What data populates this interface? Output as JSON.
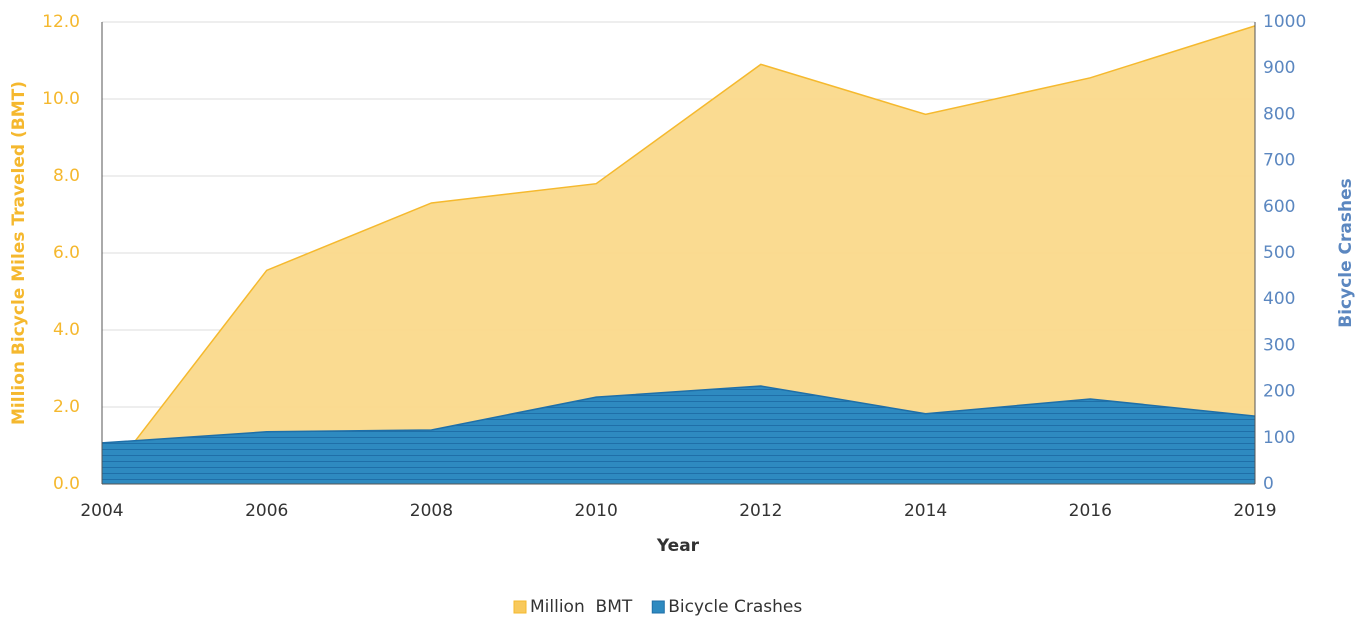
{
  "chart_data": {
    "type": "area",
    "x_label": "Year",
    "y_label": "Million Bicycle Miles Traveled (BMT)",
    "y2_label": "Bicycle Crashes",
    "categories": [
      "2004",
      "2006",
      "2008",
      "2010",
      "2012",
      "2014",
      "2016",
      "2019"
    ],
    "series": [
      {
        "name": "Million  BMT",
        "color": "#fad98b",
        "line_color": "#f5b92e",
        "values": [
          0,
          5.55,
          7.3,
          7.8,
          10.9,
          9.6,
          10.55,
          11.9
        ]
      },
      {
        "name": "Bicycle Crashes",
        "color": "#2e8ac0",
        "line_color": "#1f6fa8",
        "axis": "y2",
        "values": [
          89,
          113,
          117,
          188,
          212,
          152,
          184,
          147
        ]
      }
    ],
    "ylim": [
      0,
      12
    ],
    "yticks": [
      {
        "value": 0,
        "label": "0.0"
      },
      {
        "value": 2,
        "label": "2.0"
      },
      {
        "value": 4,
        "label": "4.0"
      },
      {
        "value": 6,
        "label": "6.0"
      },
      {
        "value": 8,
        "label": "8.0"
      },
      {
        "value": 10,
        "label": "10.0"
      },
      {
        "value": 12,
        "label": "12.0"
      }
    ],
    "y2lim": [
      0,
      1000
    ],
    "y2ticks": [
      0,
      100,
      200,
      300,
      400,
      500,
      600,
      700,
      800,
      900,
      1000
    ],
    "grid": true,
    "legend": "bottom"
  }
}
